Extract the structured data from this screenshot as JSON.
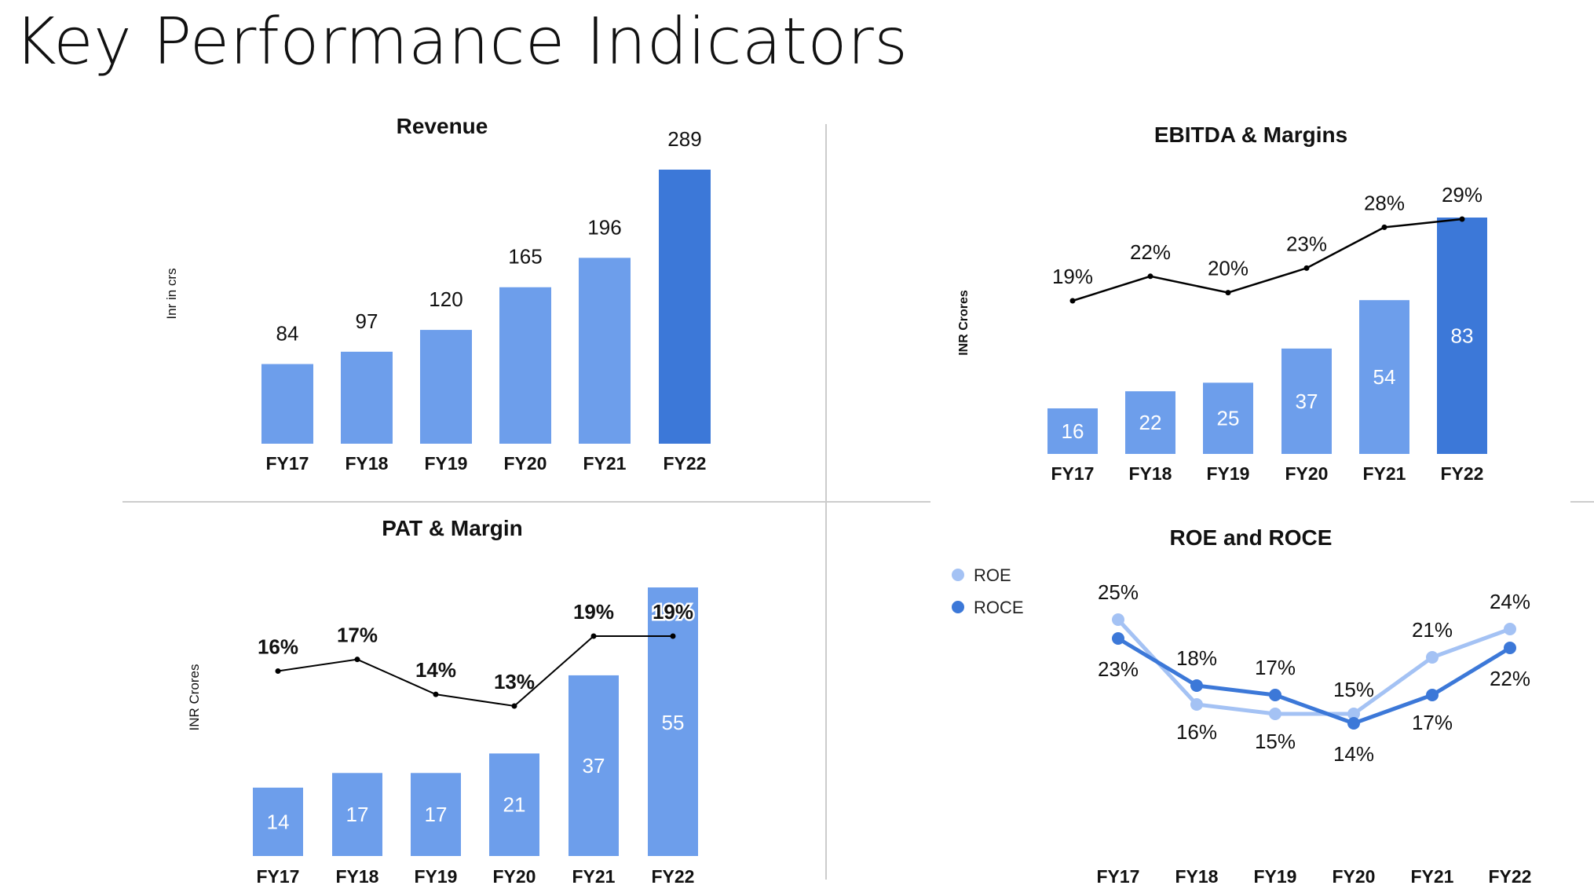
{
  "page": {
    "title": "Key Performance Indicators"
  },
  "colors": {
    "bar": "#6d9eeb",
    "bar_highlight": "#3c78d8",
    "line": "#000000",
    "roe": "#a4c2f4",
    "roce": "#3c78d8",
    "divider": "#cccccc"
  },
  "chart_data": [
    {
      "id": "revenue",
      "type": "bar",
      "title": "Revenue",
      "ylabel": "Inr in crs",
      "categories": [
        "FY17",
        "FY18",
        "FY19",
        "FY20",
        "FY21",
        "FY22"
      ],
      "values": [
        84,
        97,
        120,
        165,
        196,
        289
      ],
      "labels": [
        "84",
        "97",
        "120",
        "165",
        "196",
        "289"
      ],
      "ylim": [
        0,
        289
      ],
      "grid": false,
      "highlight_index": 5
    },
    {
      "id": "ebitda",
      "type": "bar",
      "title": "EBITDA & Margins",
      "ylabel": "INR Crores",
      "categories": [
        "FY17",
        "FY18",
        "FY19",
        "FY20",
        "FY21",
        "FY22"
      ],
      "values": [
        16,
        22,
        25,
        37,
        54,
        83
      ],
      "labels": [
        "16",
        "22",
        "25",
        "37",
        "54",
        "83"
      ],
      "ylim": [
        0,
        83
      ],
      "grid": false,
      "highlight_index": 5,
      "margin_line": {
        "values": [
          19,
          22,
          20,
          23,
          28,
          29
        ],
        "labels": [
          "19%",
          "22%",
          "20%",
          "23%",
          "28%",
          "29%"
        ],
        "ylim": [
          19,
          29
        ]
      }
    },
    {
      "id": "pat",
      "type": "bar",
      "title": "PAT & Margin",
      "ylabel": "INR Crores",
      "categories": [
        "FY17",
        "FY18",
        "FY19",
        "FY20",
        "FY21",
        "FY22"
      ],
      "values": [
        14,
        17,
        17,
        21,
        37,
        55
      ],
      "labels": [
        "14",
        "17",
        "17",
        "21",
        "37",
        "55"
      ],
      "ylim": [
        0,
        55
      ],
      "grid": false,
      "margin_line": {
        "values": [
          16,
          17,
          14,
          13,
          19,
          19
        ],
        "labels": [
          "16%",
          "17%",
          "14%",
          "13%",
          "19%",
          "19%"
        ],
        "ylim": [
          13,
          19
        ]
      }
    },
    {
      "id": "roe_roce",
      "type": "line",
      "title": "ROE and ROCE",
      "categories": [
        "FY17",
        "FY18",
        "FY19",
        "FY20",
        "FY21",
        "FY22"
      ],
      "legend": "top-left",
      "ylim": [
        14,
        25
      ],
      "grid": false,
      "series": [
        {
          "name": "ROE",
          "values": [
            25,
            16,
            15,
            15,
            21,
            24
          ],
          "labels": [
            "25%",
            "16%",
            "15%",
            "15%",
            "21%",
            "24%"
          ]
        },
        {
          "name": "ROCE",
          "values": [
            23,
            18,
            17,
            14,
            17,
            22
          ],
          "labels": [
            "23%",
            "18%",
            "17%",
            "14%",
            "17%",
            "22%"
          ]
        }
      ]
    }
  ]
}
